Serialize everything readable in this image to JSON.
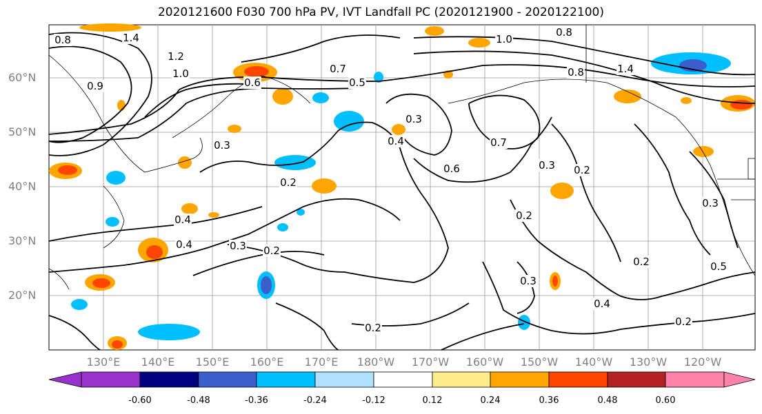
{
  "title": "2020121600 F030 700 hPa PV, IVT Landfall PC (2020121900 - 2020122100)",
  "lat_labels": [
    "60°N",
    "50°N",
    "40°N",
    "30°N",
    "20°N"
  ],
  "lon_labels": [
    "130°E",
    "140°E",
    "150°E",
    "160°E",
    "170°E",
    "180°W",
    "170°W",
    "160°W",
    "150°W",
    "140°W",
    "130°W",
    "120°W"
  ],
  "colorbar": {
    "ticks": [
      "-0.60",
      "-0.48",
      "-0.36",
      "-0.24",
      "-0.12",
      "0.12",
      "0.24",
      "0.36",
      "0.48",
      "0.60"
    ],
    "colors": [
      "#9932cc",
      "#000080",
      "#3a5fcd",
      "#00bfff",
      "#b0e2ff",
      "#ffffff",
      "#ffec8b",
      "#ffa500",
      "#ff4500",
      "#b22222",
      "#ff82ab"
    ]
  },
  "contour_labels": [
    "0.8",
    "1.4",
    "1.2",
    "1.0",
    "0.9",
    "0.6",
    "0.5",
    "0.7",
    "1.0",
    "0.8",
    "0.8",
    "1.4",
    "0.3",
    "0.4",
    "0.4",
    "0.2",
    "0.3",
    "0.2",
    "0.2",
    "0.4",
    "0.3",
    "0.7",
    "0.6",
    "0.3",
    "0.2",
    "0.3",
    "0.2",
    "0.4",
    "0.2",
    "0.2",
    "0.5",
    "0.3"
  ]
}
